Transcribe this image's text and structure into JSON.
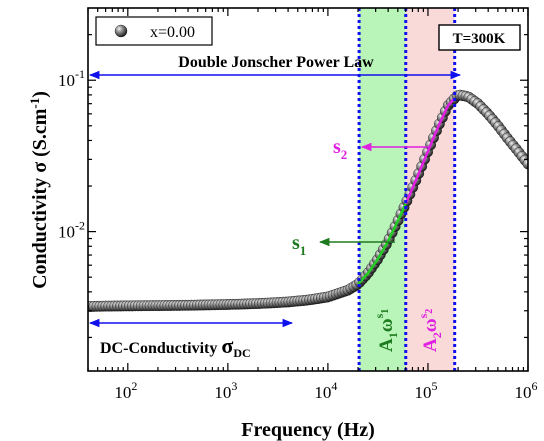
{
  "chart_data": {
    "type": "scatter",
    "xlabel": "Frequency (Hz)",
    "ylabel": {
      "main": "Conductivity σ (S.cm",
      "sup": "-1",
      "close": ")"
    },
    "x_scale": "log",
    "y_scale": "log",
    "xlim": [
      40,
      1000000
    ],
    "ylim": [
      0.0012,
      0.3
    ],
    "x_ticks": [
      {
        "value": 100,
        "base": "10",
        "exp": "2"
      },
      {
        "value": 1000,
        "base": "10",
        "exp": "3"
      },
      {
        "value": 10000,
        "base": "10",
        "exp": "4"
      },
      {
        "value": 100000,
        "base": "10",
        "exp": "5"
      },
      {
        "value": 1000000,
        "base": "10",
        "exp": "6"
      }
    ],
    "y_ticks": [
      {
        "value": 0.01,
        "base": "10",
        "exp": "-2"
      },
      {
        "value": 0.1,
        "base": "10",
        "exp": "-1"
      }
    ],
    "legend": {
      "label": "x=0.00",
      "position": "top-left"
    },
    "series": [
      {
        "name": "x=0.00",
        "marker": "sphere",
        "x": [
          40,
          63,
          100,
          158,
          251,
          398,
          631,
          1000,
          1585,
          2512,
          3981,
          6310,
          10000,
          15849,
          20000,
          25119,
          31623,
          39811,
          50119,
          63096,
          79433,
          100000,
          125893,
          158489,
          199526,
          251189,
          316228,
          398107,
          501187,
          630957,
          794328,
          1000000
        ],
        "y": [
          0.0032,
          0.00322,
          0.00323,
          0.00324,
          0.00325,
          0.00326,
          0.00328,
          0.0033,
          0.00333,
          0.00337,
          0.00343,
          0.00353,
          0.0037,
          0.0041,
          0.0045,
          0.0053,
          0.0066,
          0.0086,
          0.0118,
          0.0165,
          0.0235,
          0.034,
          0.049,
          0.068,
          0.08,
          0.078,
          0.07,
          0.06,
          0.05,
          0.041,
          0.034,
          0.028
        ]
      }
    ],
    "fits": [
      {
        "x": [
          20000,
          60000
        ],
        "y": [
          0.0042,
          0.0105
        ],
        "color": "#22cc22"
      },
      {
        "x": [
          60000,
          185000
        ],
        "y": [
          0.0105,
          0.078
        ],
        "color": "#e020e0"
      }
    ],
    "vlines": [
      {
        "x": 20500,
        "color": "#1010ee",
        "style": "dotted"
      },
      {
        "x": 60000,
        "color": "#1010ee",
        "style": "dotted"
      },
      {
        "x": 185000,
        "color": "#1010ee",
        "style": "dotted"
      }
    ],
    "regions": [
      {
        "x": [
          20500,
          60000
        ],
        "color": "#b9f5b9"
      },
      {
        "x": [
          60000,
          185000
        ],
        "color": "#fad9d9"
      }
    ],
    "annotations": {
      "temperature": "T=300K",
      "double_jonscher": "Double Jonscher Power Law",
      "dc_label": "DC-Conductivity ",
      "sigma": "σ",
      "dc_sub": "DC",
      "s1": "s",
      "s1_sub": "1",
      "s2": "s",
      "s2_sub": "2",
      "a1": "A",
      "a1_sub": "1",
      "a1_omega": "ω",
      "a1_sup": "s",
      "a1_supsub": "1",
      "a2": "A",
      "a2_sub": "2",
      "a2_omega": "ω",
      "a2_sup": "s",
      "a2_supsub": "2"
    },
    "colors": {
      "arrow": "#1010ee",
      "s1": "#1e7a1e",
      "s2": "#e020e0",
      "a1": "#1e7a1e",
      "a2": "#e020e0"
    }
  }
}
